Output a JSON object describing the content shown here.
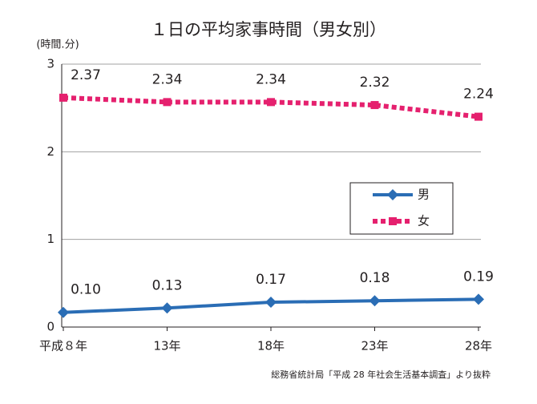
{
  "chart_data": {
    "type": "line",
    "title": "１日の平均家事時間（男女別）",
    "y_label": "(時間.分)",
    "source": "総務省統計局「平成 28 年社会生活基本調査」より抜粋",
    "categories": [
      "平成８年",
      "13年",
      "18年",
      "23年",
      "28年"
    ],
    "series": [
      {
        "name": "男",
        "color": "#2a6db5",
        "marker": "diamond",
        "values": [
          0.167,
          0.217,
          0.283,
          0.3,
          0.317
        ],
        "value_labels": [
          "0.10",
          "0.13",
          "0.17",
          "0.18",
          "0.19"
        ]
      },
      {
        "name": "女",
        "color": "#e5206e",
        "marker": "square",
        "dashed": true,
        "values": [
          2.617,
          2.567,
          2.567,
          2.533,
          2.4
        ],
        "value_labels": [
          "2.37",
          "2.34",
          "2.34",
          "2.32",
          "2.24"
        ]
      }
    ],
    "ylim": [
      0,
      3
    ],
    "yticks": [
      0,
      1,
      2,
      3
    ],
    "grid": true
  }
}
